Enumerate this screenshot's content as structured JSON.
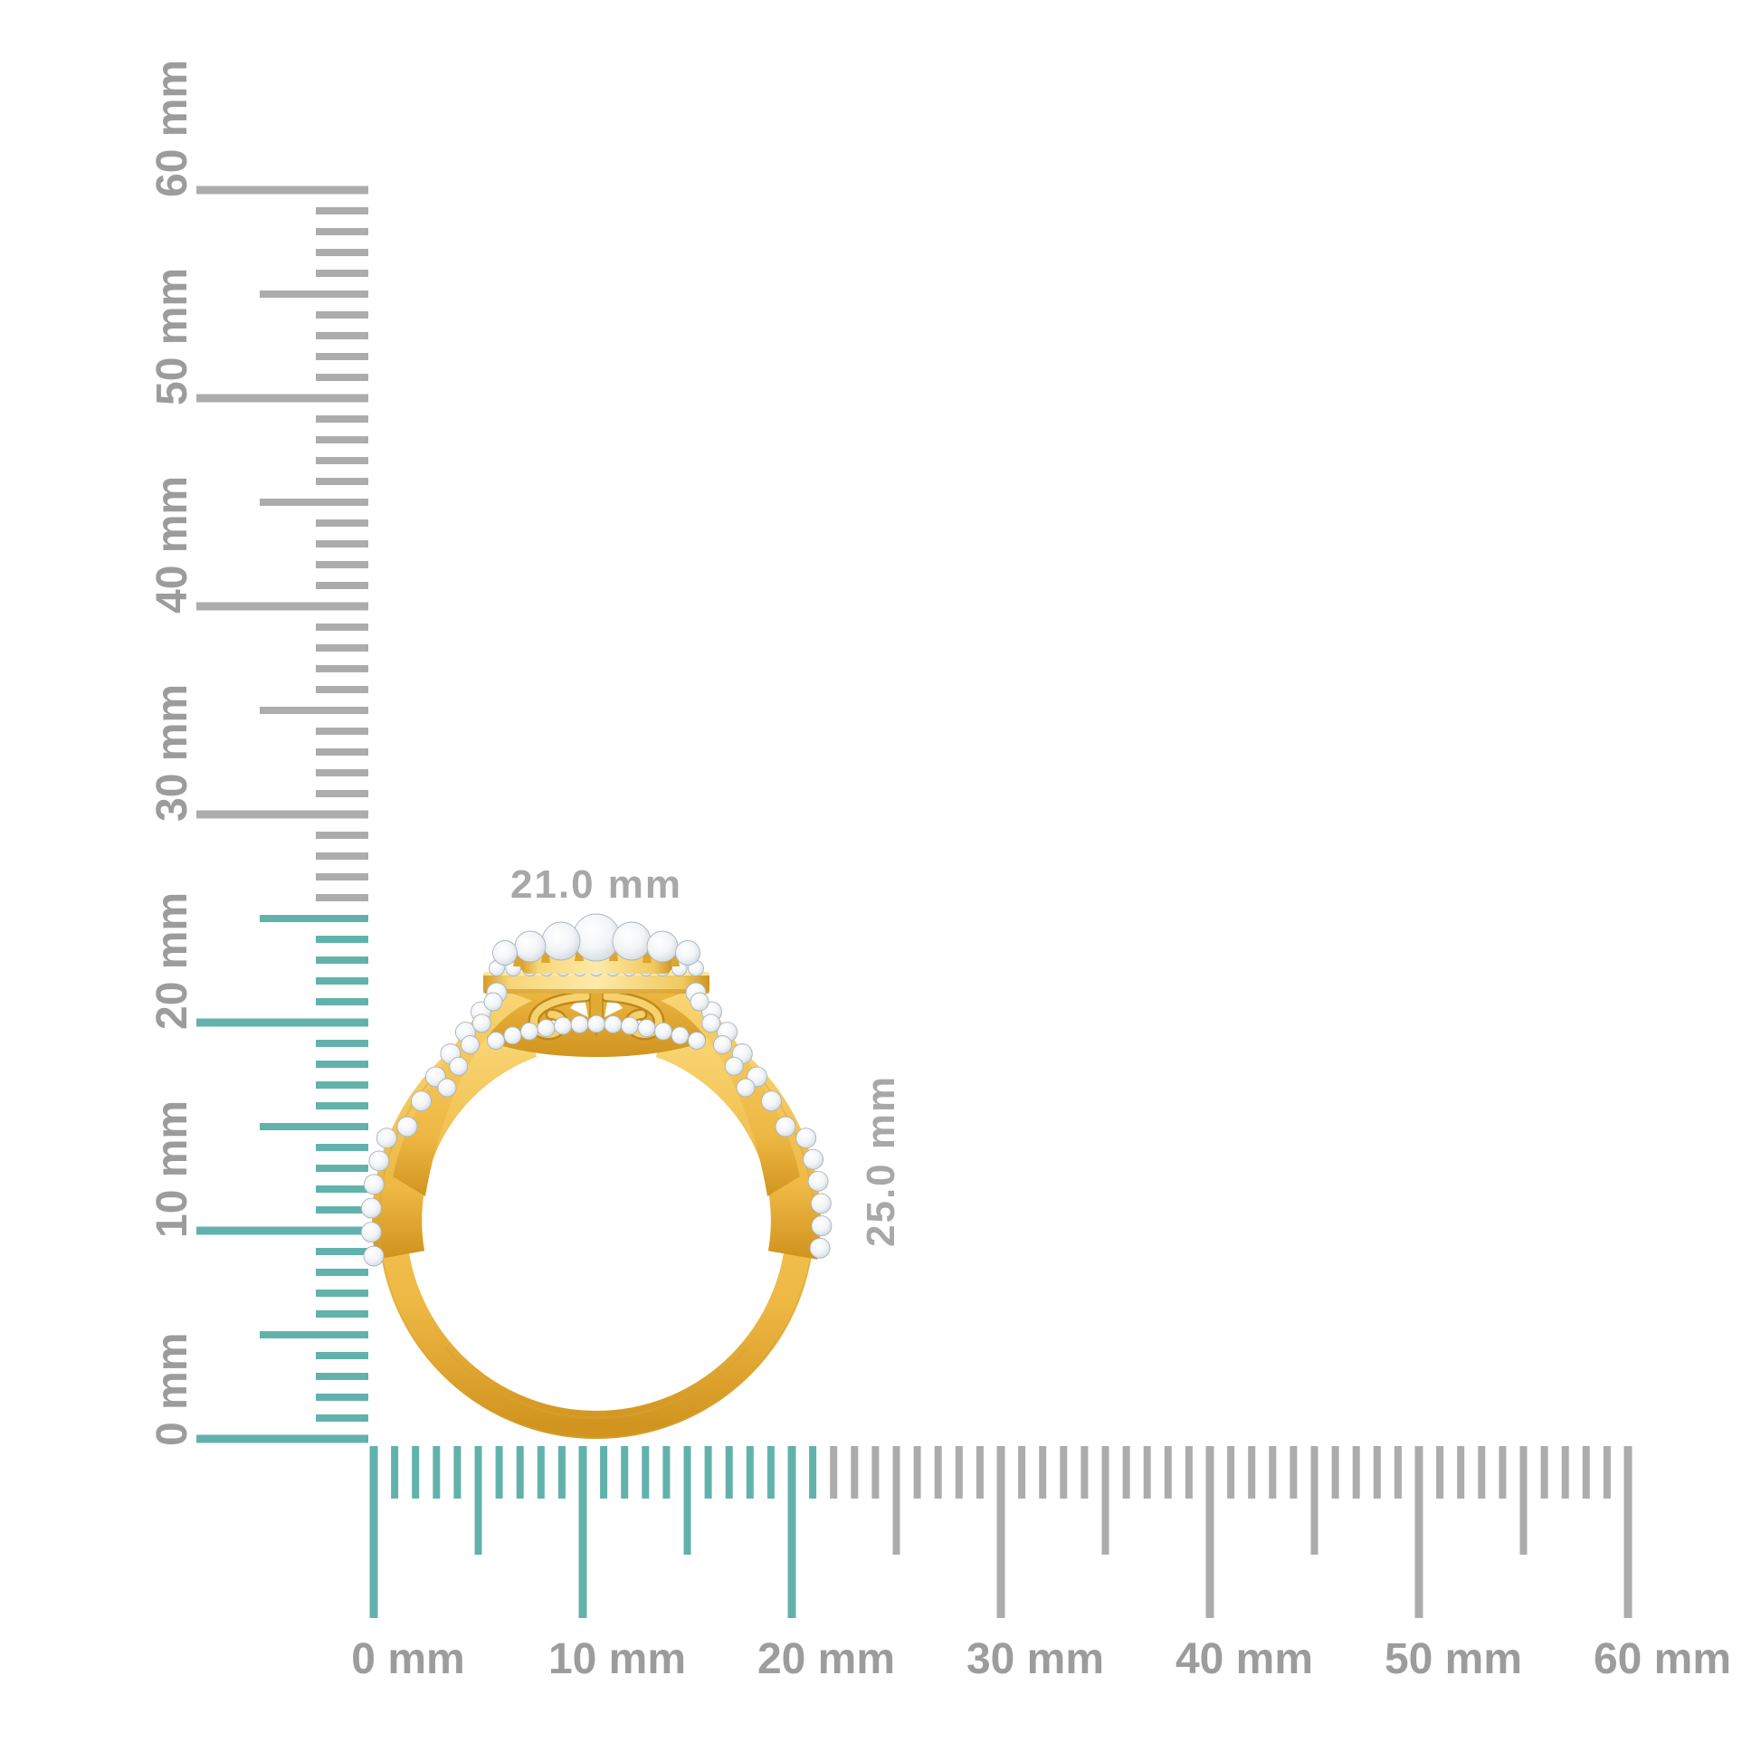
{
  "colors": {
    "background": "#ffffff",
    "teal": "#62b2ac",
    "tick_gray": "#acacac",
    "label_gray": "#9c9c9c",
    "dimension_gray": "#a8a8a8",
    "gold_light": "#fbe291",
    "gold_base": "#f3c65a",
    "gold_mid": "#e8af37",
    "gold_dark": "#cd9020",
    "diamond_white": "#ffffff",
    "diamond_shade": "#ccd4db",
    "diamond_edge": "#aab4bd"
  },
  "rulers": {
    "unit": "mm",
    "vertical": {
      "max_mm": 60,
      "label_step_mm": 10,
      "medium_step_mm": 5,
      "highlight_extent_mm": 25,
      "labels": [
        "0 mm",
        "10 mm",
        "20 mm",
        "30 mm",
        "40 mm",
        "50 mm",
        "60 mm"
      ]
    },
    "horizontal": {
      "max_mm": 60,
      "label_step_mm": 10,
      "medium_step_mm": 5,
      "highlight_extent_mm": 21,
      "labels": [
        "0 mm",
        "10 mm",
        "20 mm",
        "30 mm",
        "40 mm",
        "50 mm",
        "60 mm"
      ]
    }
  },
  "annotations": {
    "width_label": "21.0 mm",
    "height_label": "25.0 mm"
  }
}
